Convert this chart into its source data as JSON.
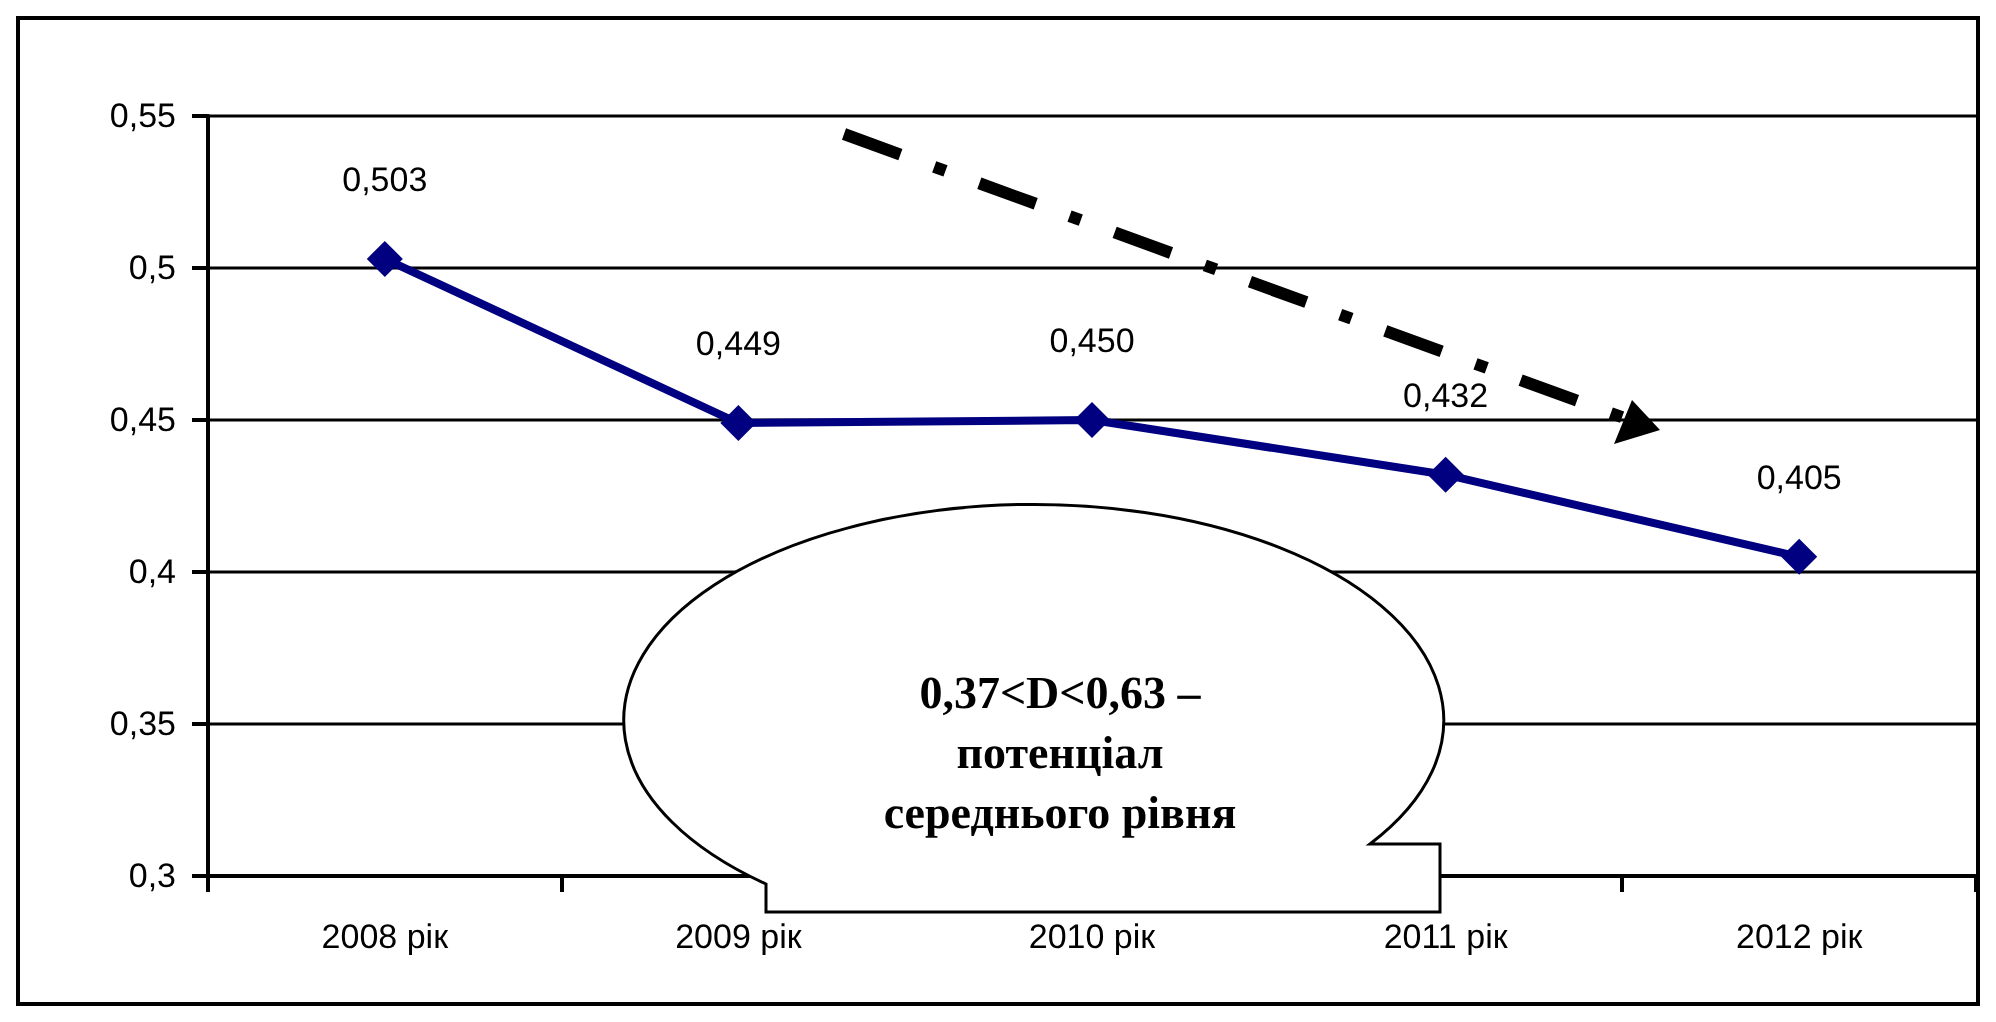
{
  "chart_data": {
    "type": "line",
    "categories": [
      "2008 рік",
      "2009 рік",
      "2010 рік",
      "2011 рік",
      "2012 рік"
    ],
    "series": [
      {
        "color": "#000080",
        "values": [
          0.503,
          0.449,
          0.45,
          0.432,
          0.405
        ],
        "value_labels": [
          "0,503",
          "0,449",
          "0,450",
          "0,432",
          "0,405"
        ]
      }
    ],
    "ylim": [
      0.3,
      0.55
    ],
    "yticks": [
      {
        "value": 0.3,
        "label": "0,3"
      },
      {
        "value": 0.35,
        "label": "0,35"
      },
      {
        "value": 0.4,
        "label": "0,4"
      },
      {
        "value": 0.45,
        "label": "0,45"
      },
      {
        "value": 0.5,
        "label": "0,5"
      },
      {
        "value": 0.55,
        "label": "0,55"
      }
    ],
    "grid": "y",
    "marker": "diamond",
    "line_style": "solid",
    "annotations": [
      "0,37<D<0,63 –\nпотенціал\nсереднього рівня"
    ]
  }
}
